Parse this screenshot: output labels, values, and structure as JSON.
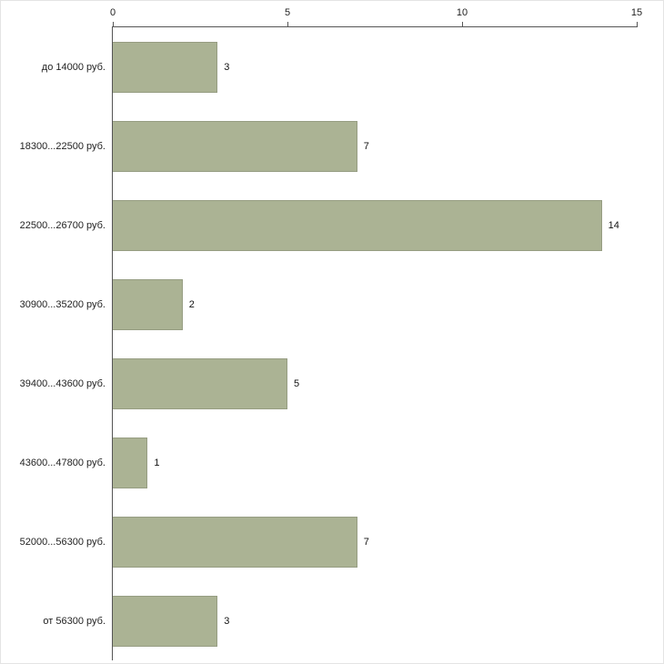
{
  "chart_data": {
    "type": "bar",
    "orientation": "horizontal",
    "title": "",
    "xlabel": "",
    "ylabel": "",
    "categories": [
      "до 14000 руб.",
      "18300...22500 руб.",
      "22500...26700 руб.",
      "30900...35200 руб.",
      "39400...43600 руб.",
      "43600...47800 руб.",
      "52000...56300 руб.",
      "от 56300 руб."
    ],
    "values": [
      3,
      7,
      14,
      2,
      5,
      1,
      7,
      3
    ],
    "xlim": [
      0,
      15
    ],
    "ticks": [
      0,
      5,
      10,
      15
    ],
    "tick_position": "top",
    "grid": false,
    "legend": "none",
    "bar_color": "#abb394",
    "axis_color": "#555555",
    "text_color": "#222222",
    "background_color": "#ffffff"
  }
}
